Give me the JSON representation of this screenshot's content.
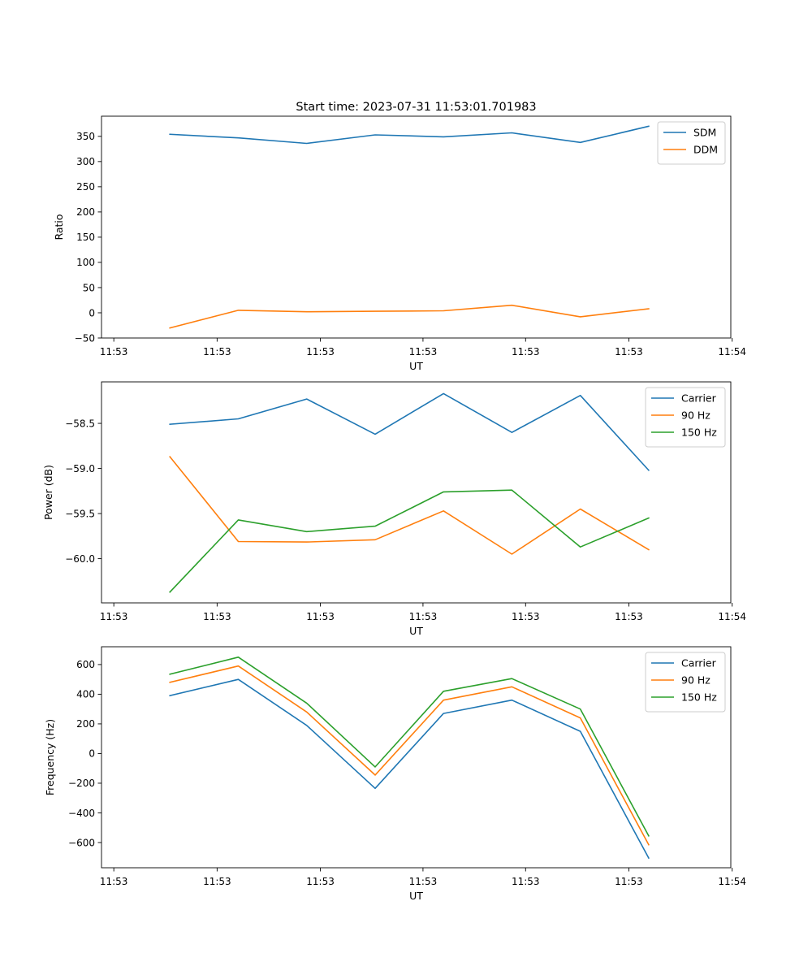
{
  "figure": {
    "title": "Start time: 2023-07-31 11:53:01.701983"
  },
  "chart_data": [
    {
      "type": "line",
      "name": "ratio",
      "title": "Start time: 2023-07-31 11:53:01.701983",
      "xlabel": "UT",
      "ylabel": "Ratio",
      "x_tick_labels": [
        "11:53",
        "11:53",
        "11:53",
        "11:53",
        "11:53",
        "11:53",
        "11:54"
      ],
      "x": [
        1,
        2,
        3,
        4,
        5,
        6,
        7,
        8
      ],
      "xlim": [
        0,
        9.2
      ],
      "x_ticks": [
        0.18,
        1.69,
        3.2,
        4.7,
        6.2,
        7.71,
        9.22
      ],
      "ylim": [
        -50,
        390
      ],
      "y_ticks": [
        -50,
        0,
        50,
        100,
        150,
        200,
        250,
        300,
        350
      ],
      "legend": "top-right",
      "grid": false,
      "series": [
        {
          "name": "SDM",
          "color": "#1f77b4",
          "values": [
            354,
            347,
            336,
            353,
            349,
            357,
            338,
            370
          ]
        },
        {
          "name": "DDM",
          "color": "#ff7f0e",
          "values": [
            -30,
            5,
            2,
            3,
            4,
            15,
            -8,
            8
          ]
        }
      ]
    },
    {
      "type": "line",
      "name": "power",
      "title": "",
      "xlabel": "UT",
      "ylabel": "Power (dB)",
      "x_tick_labels": [
        "11:53",
        "11:53",
        "11:53",
        "11:53",
        "11:53",
        "11:53",
        "11:54"
      ],
      "x": [
        1,
        2,
        3,
        4,
        5,
        6,
        7,
        8
      ],
      "xlim": [
        0,
        9.2
      ],
      "x_ticks": [
        0.18,
        1.69,
        3.2,
        4.7,
        6.2,
        7.71,
        9.22
      ],
      "ylim": [
        -60.49,
        -58.04
      ],
      "y_ticks": [
        -60.0,
        -59.5,
        -59.0,
        -58.5
      ],
      "y_tick_labels": [
        "−60.0",
        "−59.5",
        "−59.0",
        "−58.5"
      ],
      "legend": "top-right",
      "grid": false,
      "series": [
        {
          "name": "Carrier",
          "color": "#1f77b4",
          "values": [
            -58.51,
            -58.45,
            -58.23,
            -58.62,
            -58.17,
            -58.6,
            -58.19,
            -59.02
          ]
        },
        {
          "name": "90 Hz",
          "color": "#ff7f0e",
          "values": [
            -58.87,
            -59.81,
            -59.815,
            -59.79,
            -59.47,
            -59.95,
            -59.45,
            -59.9
          ]
        },
        {
          "name": "150 Hz",
          "color": "#2ca02c",
          "values": [
            -60.37,
            -59.57,
            -59.7,
            -59.64,
            -59.26,
            -59.24,
            -59.87,
            -59.55
          ]
        }
      ]
    },
    {
      "type": "line",
      "name": "frequency",
      "title": "",
      "xlabel": "UT",
      "ylabel": "Frequency (Hz)",
      "x_tick_labels": [
        "11:53",
        "11:53",
        "11:53",
        "11:53",
        "11:53",
        "11:53",
        "11:54"
      ],
      "x": [
        1,
        2,
        3,
        4,
        5,
        6,
        7,
        8
      ],
      "xlim": [
        0,
        9.2
      ],
      "x_ticks": [
        0.18,
        1.69,
        3.2,
        4.7,
        6.2,
        7.71,
        9.22
      ],
      "ylim": [
        -770,
        720
      ],
      "y_ticks": [
        -600,
        -400,
        -200,
        0,
        200,
        400,
        600
      ],
      "y_tick_labels": [
        "−600",
        "−400",
        "−200",
        "0",
        "200",
        "400",
        "600"
      ],
      "legend": "top-right",
      "grid": false,
      "series": [
        {
          "name": "Carrier",
          "color": "#1f77b4",
          "values": [
            390,
            500,
            190,
            -235,
            270,
            360,
            150,
            -705
          ]
        },
        {
          "name": "90 Hz",
          "color": "#ff7f0e",
          "values": [
            480,
            590,
            280,
            -145,
            360,
            450,
            240,
            -615
          ]
        },
        {
          "name": "150 Hz",
          "color": "#2ca02c",
          "values": [
            535,
            650,
            340,
            -90,
            420,
            505,
            300,
            -555
          ]
        }
      ]
    }
  ]
}
